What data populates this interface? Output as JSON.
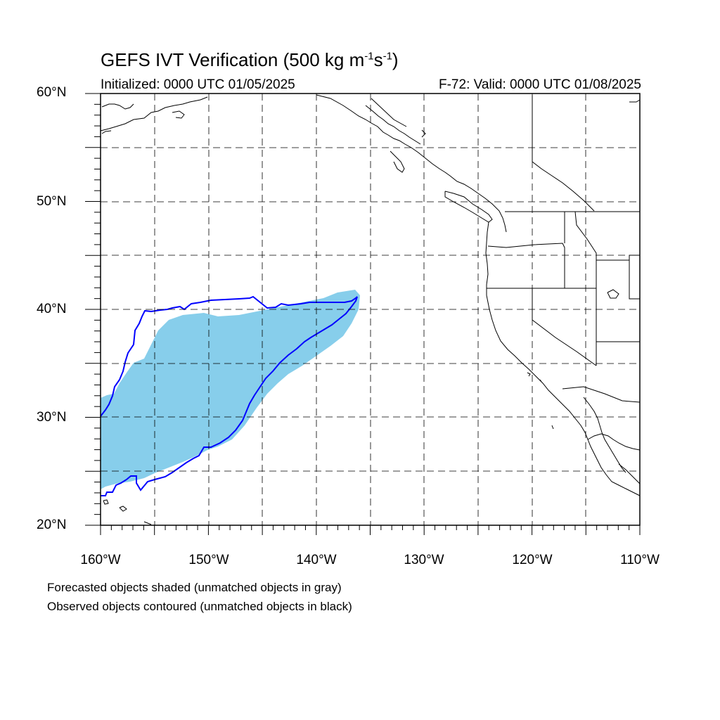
{
  "title_main": "GEFS IVT Verification (500 kg m",
  "title_exp1": "-1",
  "title_mid": "s",
  "title_exp2": "-1",
  "title_end": ")",
  "initialized": "Initialized: 0000 UTC 01/05/2025",
  "valid": "F-72: Valid: 0000 UTC 01/08/2025",
  "lat_labels": [
    "60°N",
    "50°N",
    "40°N",
    "30°N",
    "20°N"
  ],
  "lon_labels": [
    "160°W",
    "150°W",
    "140°W",
    "130°W",
    "120°W",
    "110°W"
  ],
  "note_forecast": "Forecasted objects shaded (unmatched objects in gray)",
  "note_observed": "Observed objects contoured (unmatched objects in black)",
  "colors": {
    "forecast_fill": "#87ceeb",
    "observed_contour": "#0000ff",
    "coastline": "#000000",
    "grid": "#000000"
  },
  "map": {
    "projection": "cylindrical-equidistant",
    "lat_range": [
      20,
      60
    ],
    "lon_range": [
      -160,
      -110
    ],
    "grid_lines": "dashed every 5 degrees"
  }
}
